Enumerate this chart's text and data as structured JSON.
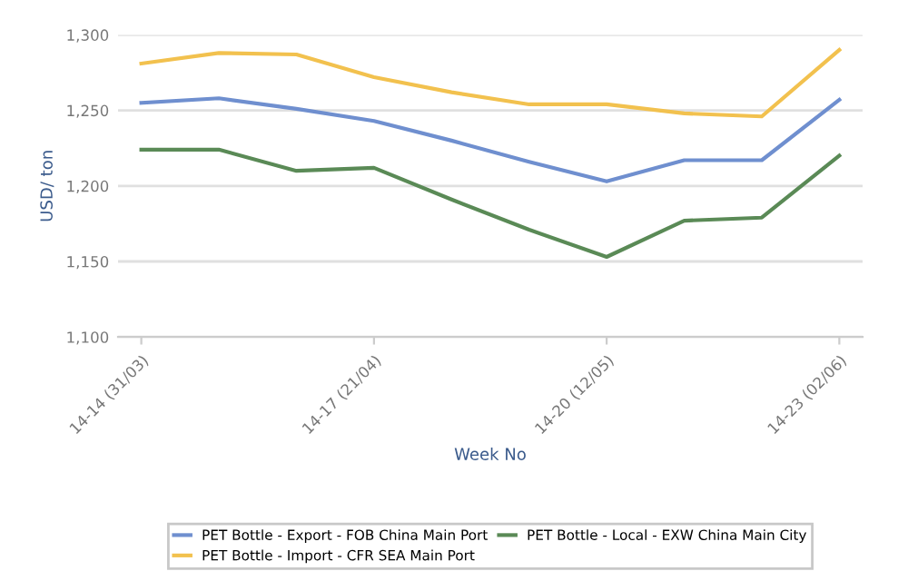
{
  "chart_data": {
    "type": "line",
    "xlabel": "Week No",
    "ylabel": "USD/ ton",
    "categories": [
      "14-14 (31/03)",
      null,
      null,
      "14-17 (21/04)",
      null,
      null,
      "14-20 (12/05)",
      null,
      null,
      "14-23 (02/06)"
    ],
    "series": [
      {
        "name": "PET Bottle - Export - FOB China Main Port",
        "color": "#6f8fcf",
        "values": [
          1255,
          1258,
          1251,
          1243,
          1230,
          1216,
          1203,
          1217,
          1217,
          1257
        ]
      },
      {
        "name": "PET Bottle - Import - CFR SEA Main Port",
        "color": "#f2c14e",
        "values": [
          1281,
          1288,
          1287,
          1272,
          1262,
          1254,
          1254,
          1248,
          1246,
          1290
        ]
      },
      {
        "name": "PET Bottle - Local - EXW China Main City",
        "color": "#5a8a56",
        "values": [
          1224,
          1224,
          1210,
          1212,
          1191,
          1171,
          1153,
          1177,
          1179,
          1220
        ]
      }
    ],
    "ylim": [
      1100,
      1300
    ],
    "yticks": [
      {
        "value": 1100,
        "label": "1,100"
      },
      {
        "value": 1150,
        "label": "1,150"
      },
      {
        "value": 1200,
        "label": "1,200"
      },
      {
        "value": 1250,
        "label": "1,250"
      },
      {
        "value": 1300,
        "label": "1,300"
      }
    ],
    "grid": "y",
    "legend": "bottom",
    "marker": "none",
    "line_style": "solid"
  }
}
